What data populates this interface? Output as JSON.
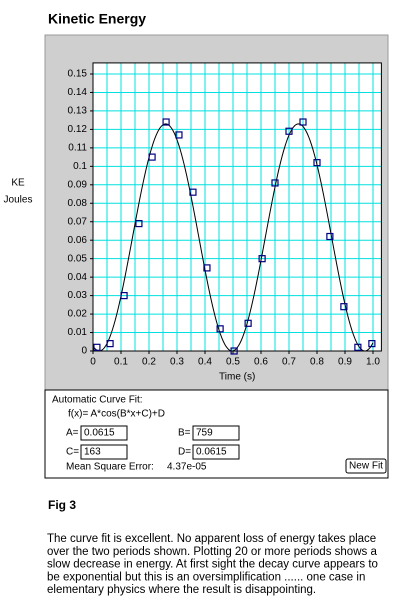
{
  "title": "Kinetic Energy",
  "chart_data": {
    "type": "scatter",
    "y_label_lines": [
      "KE",
      "Joules"
    ],
    "x_label": "Time (s)",
    "x": [
      0.014,
      0.061,
      0.111,
      0.164,
      0.211,
      0.261,
      0.307,
      0.357,
      0.407,
      0.454,
      0.504,
      0.554,
      0.604,
      0.65,
      0.7,
      0.75,
      0.8,
      0.846,
      0.896,
      0.946,
      0.996
    ],
    "values": [
      0.002,
      0.004,
      0.03,
      0.069,
      0.105,
      0.124,
      0.117,
      0.086,
      0.045,
      0.012,
      0.0,
      0.015,
      0.05,
      0.091,
      0.119,
      0.124,
      0.102,
      0.062,
      0.024,
      0.002,
      0.004
    ],
    "color": "#000080",
    "xlim": [
      0,
      1.03
    ],
    "ylim": [
      0,
      0.156
    ],
    "xticks": [
      0,
      0.1,
      0.2,
      0.3,
      0.4,
      0.5,
      0.6,
      0.7,
      0.8,
      0.9,
      {
        "value": 1,
        "label": "1.0"
      }
    ],
    "minor_xticks": [
      0.05,
      0.15,
      0.25,
      0.35,
      0.45,
      0.55,
      0.65,
      0.75,
      0.85,
      0.95
    ],
    "yticks": [
      0,
      0.01,
      0.02,
      0.03,
      0.04,
      0.05,
      0.06,
      0.07,
      0.08,
      0.09,
      0.1,
      0.11,
      0.12,
      0.13,
      0.14,
      0.15
    ],
    "grid": true,
    "grid_color": "#00e0e0",
    "fit": {
      "heading": "Automatic Curve Fit:",
      "formula": "f(x)=  A*cos(B*x+C)+D",
      "params": [
        {
          "name": "A=",
          "value": 0.0615
        },
        {
          "name": "B=",
          "value": 759
        },
        {
          "name": "C=",
          "value": 163
        },
        {
          "name": "D=",
          "value": 0.0615
        }
      ],
      "mse_label": "Mean Square Error:",
      "mse": "4.37e-05",
      "button": "New Fit",
      "color": "#000000"
    }
  },
  "figure_label": "Fig 3",
  "caption_lines": [
    "The curve fit is excellent. No apparent loss of energy takes place",
    "over the two periods shown. Plotting 20 or more periods shows a",
    "slow decrease in energy. At first sight the decay curve appears to",
    "be exponential but this is an oversimplification ...... one case in",
    "elementary physics where the result is disappointing."
  ]
}
